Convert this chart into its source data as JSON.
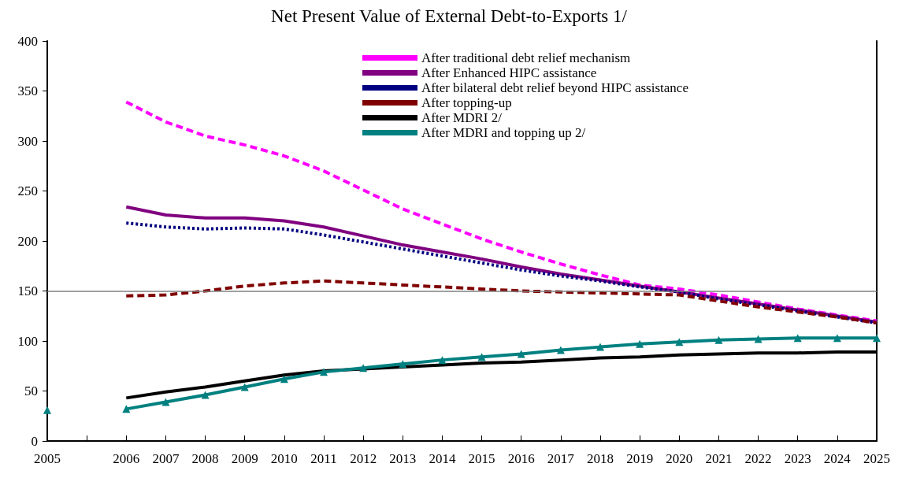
{
  "chart_data": {
    "type": "line",
    "title": "Net Present Value of External Debt-to-Exports 1/",
    "categories": [
      "2005",
      null,
      "2006",
      "2007",
      "2008",
      "2009",
      "2010",
      "2011",
      "2012",
      "2013",
      "2014",
      "2015",
      "2016",
      "2017",
      "2018",
      "2019",
      "2020",
      "2021",
      "2022",
      "2023",
      "2024",
      "2025"
    ],
    "series": [
      {
        "name": "After traditional debt relief mechanism",
        "color": "#ff00ff",
        "line_style": "dashed",
        "values": [
          null,
          null,
          339,
          319,
          305,
          296,
          285,
          270,
          251,
          232,
          217,
          202,
          189,
          177,
          166,
          156,
          152,
          146,
          139,
          132,
          126,
          120
        ]
      },
      {
        "name": "After Enhanced HIPC assistance",
        "color": "#800080",
        "line_style": "solid",
        "values": [
          null,
          null,
          234,
          226,
          223,
          223,
          220,
          214,
          205,
          196,
          189,
          182,
          174,
          167,
          161,
          155,
          149,
          143,
          137,
          131,
          125,
          119
        ]
      },
      {
        "name": "After bilateral debt relief beyond HIPC assistance",
        "color": "#000080",
        "line_style": "dotted",
        "values": [
          null,
          null,
          218,
          214,
          212,
          213,
          212,
          206,
          199,
          192,
          185,
          178,
          171,
          165,
          160,
          154,
          149,
          142,
          136,
          130,
          124,
          118
        ]
      },
      {
        "name": "After topping-up",
        "color": "#800000",
        "line_style": "dashed",
        "values": [
          null,
          null,
          145,
          146,
          150,
          155,
          158,
          160,
          158,
          156,
          154,
          152,
          150,
          149,
          148,
          147,
          146,
          140,
          134,
          129,
          124,
          118
        ]
      },
      {
        "name": "After MDRI 2/",
        "color": "#000000",
        "line_style": "solid",
        "values": [
          null,
          null,
          43,
          49,
          54,
          60,
          66,
          70,
          72,
          74,
          76,
          78,
          79,
          81,
          83,
          84,
          86,
          87,
          88,
          88,
          89,
          89
        ]
      },
      {
        "name": "After MDRI and topping up 2/",
        "color": "#008080",
        "line_style": "solid",
        "marker": "triangle",
        "values": [
          31,
          null,
          32,
          39,
          46,
          54,
          62,
          69,
          73,
          77,
          81,
          84,
          87,
          91,
          94,
          97,
          99,
          101,
          102,
          103,
          103,
          103
        ]
      }
    ],
    "ylim": [
      0,
      400
    ],
    "yticks": [
      0,
      50,
      100,
      150,
      200,
      250,
      300,
      350,
      400
    ],
    "grid": false,
    "legend": "top",
    "marker": "none",
    "ref_lines": [
      {
        "axis": "y",
        "value": 150,
        "color": "#808080"
      }
    ]
  }
}
